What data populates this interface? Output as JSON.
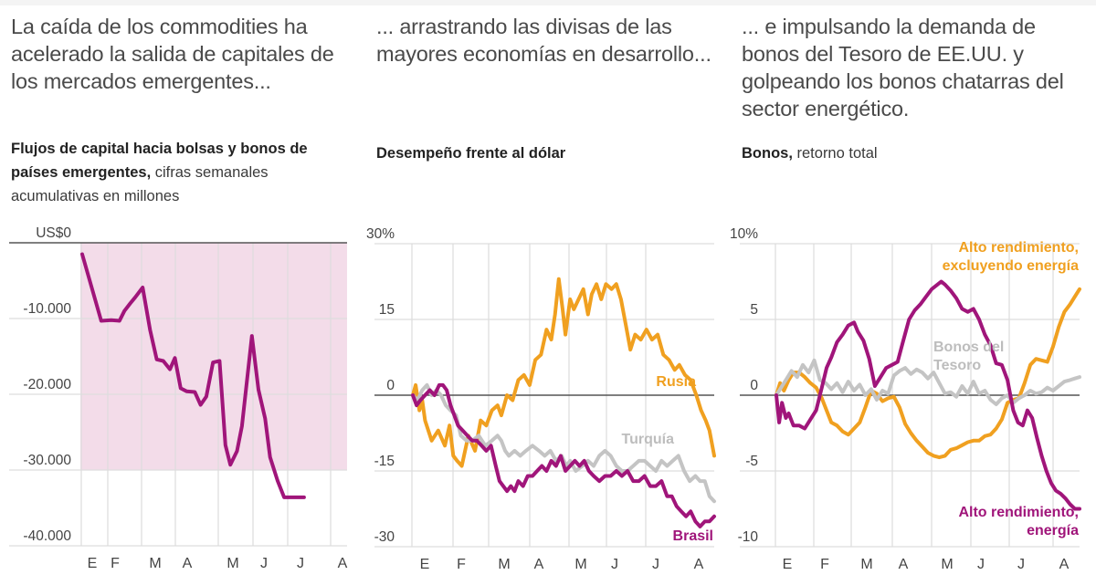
{
  "panels": [
    {
      "headline": "La caída de los commodities ha acelerado la salida de capitales de los mercados emergentes...",
      "subtitle_bold": "Flujos de capital hacia bolsas y bonos de países emergentes,",
      "subtitle_rest": " cifras semanales acumulativas en millones"
    },
    {
      "headline": "... arrastrando las divisas de las mayores economías en desarrollo...",
      "subtitle_bold": "Desempeño frente al dólar",
      "subtitle_rest": ""
    },
    {
      "headline": "... e impulsando la demanda de bonos del Tesoro de EE.UU. y golpeando los bonos chatarras del sector energético.",
      "subtitle_bold": "Bonos,",
      "subtitle_rest": " retorno total"
    }
  ],
  "colors": {
    "magenta": "#a0157a",
    "orange": "#f0a020",
    "gray": "#c4c4c4",
    "fill": "#f3dce9",
    "grid": "#dddddd",
    "zero": "#555555"
  },
  "chart_data": [
    {
      "type": "area",
      "title": "Flujos de capital hacia bolsas y bonos de países emergentes, cifras semanales acumulativas en millones",
      "xlabel": "",
      "ylabel": "",
      "ylim": [
        -40000,
        0
      ],
      "yticks": [
        0,
        -10000,
        -20000,
        -30000,
        -40000
      ],
      "ytick_labels": [
        "US$0",
        "-10.000",
        "-20.000",
        "-30.000",
        "-40.000"
      ],
      "xtick_labels": [
        "E",
        "F",
        "M",
        "A",
        "M",
        "J",
        "J",
        "A"
      ],
      "x_domain": [
        0,
        32
      ],
      "xtick_positions": [
        1,
        3.5,
        6.8,
        10,
        14,
        17.3,
        20.5,
        24.5
      ],
      "series": [
        {
          "name": "Flujos de capital",
          "color": "#a0157a",
          "x": [
            0,
            2.3,
            3.5,
            4.5,
            5.1,
            5.8,
            6.4,
            7.3,
            8.2,
            9,
            9.8,
            10.6,
            11.2,
            11.9,
            12.6,
            13.6,
            14.3,
            15.0,
            15.8,
            16.6,
            17.3,
            17.9,
            18.7,
            19.3,
            20.5,
            21.3,
            22.1,
            22.7,
            23.6,
            24.4,
            25.3,
            26.1,
            26.8
          ],
          "values": [
            -1500,
            -10300,
            -10200,
            -10300,
            -9000,
            -8000,
            -7200,
            -5900,
            -11500,
            -15400,
            -15600,
            -16700,
            -15200,
            -19200,
            -19600,
            -19700,
            -21400,
            -20300,
            -15800,
            -15600,
            -26700,
            -29300,
            -27500,
            -24200,
            -12300,
            -19400,
            -23200,
            -28300,
            -31400,
            -33600,
            -33600,
            -33600,
            -33600
          ]
        }
      ]
    },
    {
      "type": "line",
      "title": "Desempeño frente al dólar",
      "xlabel": "",
      "ylabel": "",
      "ylim": [
        -30,
        30
      ],
      "yticks": [
        30,
        15,
        0,
        -15,
        -30
      ],
      "ytick_labels": [
        "30%",
        "15",
        "0",
        "-15",
        "-30"
      ],
      "xtick_labels": [
        "E",
        "F",
        "M",
        "A",
        "M",
        "J",
        "J",
        "A"
      ],
      "x_domain": [
        0,
        32
      ],
      "xtick_positions": [
        1,
        5.2,
        9.4,
        13.6,
        18.2,
        22.4,
        26.6,
        30.8
      ],
      "series": [
        {
          "name": "Rusia",
          "color": "#f0a020",
          "x": [
            0,
            0.3,
            0.7,
            1.0,
            1.3,
            2.0,
            2.7,
            3.4,
            3.9,
            4.3,
            4.7,
            5.2,
            5.9,
            6.6,
            7.2,
            7.8,
            8.4,
            9.0,
            9.4,
            10,
            10.6,
            11.2,
            11.8,
            12.4,
            13,
            13.6,
            14.2,
            14.7,
            15.1,
            15.5,
            15.9,
            16.2,
            16.7,
            17.1,
            17.6,
            18.1,
            18.6,
            19.0,
            19.5,
            20.0,
            20.5,
            21.1,
            21.6,
            22.1,
            22.6,
            23.1,
            23.6,
            24.2,
            24.8,
            25.4,
            26.0,
            26.6,
            27.2,
            27.8,
            28.3,
            28.9,
            29.5,
            30.1,
            30.6,
            31.1,
            31.5,
            32
          ],
          "values": [
            0,
            2,
            -3,
            -1,
            -5,
            -9,
            -7,
            -10,
            -6,
            -12,
            -13,
            -14,
            -8,
            -11,
            -5,
            -6,
            -3,
            -2,
            -4,
            0,
            -1,
            3,
            4,
            2,
            7,
            8,
            13,
            11,
            16,
            23,
            17,
            12,
            19,
            17,
            19,
            21,
            16,
            20,
            22,
            19,
            22,
            21,
            22,
            19,
            14,
            9,
            12,
            11,
            13,
            11,
            12,
            8,
            7,
            5,
            6,
            4,
            3,
            0,
            -3,
            -5,
            -7,
            -12
          ]
        },
        {
          "name": "Turquía",
          "color": "#c4c4c4",
          "x": [
            0,
            0.5,
            1.0,
            1.5,
            2.0,
            2.5,
            3.0,
            3.5,
            4.0,
            4.6,
            5.1,
            5.7,
            6.3,
            7.0,
            7.7,
            8.4,
            9.0,
            9.4,
            9.8,
            10.2,
            10.8,
            11.4,
            12.0,
            12.7,
            13.4,
            14.0,
            14.6,
            15.2,
            15.8,
            16.3,
            16.7,
            17.3,
            18.0,
            18.6,
            19.2,
            19.8,
            20.4,
            21.0,
            21.6,
            22.2,
            22.8,
            23.4,
            24.0,
            24.6,
            25.2,
            25.8,
            26.4,
            27.0,
            27.6,
            28.2,
            28.8,
            29.4,
            30.0,
            30.5,
            31.0,
            31.5,
            32
          ],
          "values": [
            0,
            -1,
            1,
            2,
            0,
            1,
            0,
            -2,
            -3,
            -4,
            -8,
            -9,
            -9,
            -8,
            -10,
            -9,
            -8,
            -9,
            -11,
            -12,
            -11,
            -12,
            -11,
            -10,
            -11,
            -12,
            -11,
            -13,
            -12,
            -14,
            -13,
            -15,
            -14,
            -13,
            -14,
            -12,
            -11,
            -12,
            -14,
            -15,
            -15,
            -14,
            -13,
            -13,
            -14,
            -15,
            -13,
            -14,
            -13,
            -12,
            -15,
            -17,
            -16,
            -17,
            -17,
            -20,
            -21
          ]
        },
        {
          "name": "Brasil",
          "color": "#a0157a",
          "x": [
            0,
            0.4,
            0.8,
            1.3,
            1.8,
            2.3,
            2.8,
            3.2,
            3.6,
            4.0,
            4.4,
            4.8,
            5.3,
            5.8,
            6.3,
            6.8,
            7.3,
            7.8,
            8.3,
            8.8,
            9.2,
            9.6,
            10.0,
            10.4,
            10.8,
            11.2,
            11.7,
            12.2,
            12.7,
            13.2,
            13.7,
            14.2,
            14.7,
            15.2,
            15.7,
            16.2,
            16.7,
            17.2,
            17.7,
            18.2,
            18.7,
            19.2,
            19.8,
            20.4,
            21.0,
            21.6,
            22.2,
            22.8,
            23.4,
            24.0,
            24.6,
            25.2,
            25.8,
            26.4,
            27.0,
            27.5,
            28.0,
            28.5,
            29.0,
            29.5,
            30.0,
            30.5,
            31.0,
            31.5,
            32
          ],
          "values": [
            0,
            -2,
            -1,
            0,
            1,
            0,
            2,
            2,
            1,
            -2,
            -4,
            -6,
            -7,
            -8,
            -9,
            -9,
            -10,
            -11,
            -10,
            -14,
            -17,
            -18,
            -19,
            -18,
            -19,
            -17,
            -18,
            -16,
            -16,
            -15,
            -14,
            -15,
            -13,
            -14,
            -12,
            -15,
            -14,
            -13,
            -14,
            -13,
            -15,
            -16,
            -17,
            -16,
            -16,
            -15,
            -16,
            -15,
            -17,
            -17,
            -16,
            -18,
            -18,
            -17,
            -20,
            -20,
            -22,
            -23,
            -24,
            -23,
            -25,
            -26,
            -25,
            -25,
            -24
          ]
        }
      ],
      "annotations": [
        "Rusia",
        "Turquía",
        "Brasil"
      ]
    },
    {
      "type": "line",
      "title": "Bonos, retorno total",
      "xlabel": "",
      "ylabel": "",
      "ylim": [
        -10,
        10
      ],
      "yticks": [
        10,
        5,
        0,
        -5,
        -10
      ],
      "ytick_labels": [
        "10%",
        "5",
        "0",
        "-5",
        "-10"
      ],
      "xtick_labels": [
        "E",
        "F",
        "M",
        "A",
        "M",
        "J",
        "J",
        "A"
      ],
      "x_domain": [
        0,
        32
      ],
      "xtick_positions": [
        1,
        4.8,
        8.6,
        12.6,
        16.7,
        20.5,
        24.7,
        28.8
      ],
      "series": [
        {
          "name": "Alto rendimiento, excluyendo energía",
          "color": "#f0a020",
          "x": [
            0,
            0.4,
            0.8,
            1.3,
            1.8,
            2.4,
            3.0,
            3.6,
            4.2,
            4.8,
            5.3,
            5.8,
            6.4,
            7.0,
            7.6,
            8.2,
            8.8,
            9.4,
            10.0,
            10.6,
            11.2,
            11.8,
            12.4,
            13.0,
            13.6,
            14.2,
            14.8,
            15.4,
            16.0,
            16.6,
            17.2,
            17.8,
            18.4,
            19.0,
            19.6,
            20.2,
            20.8,
            21.4,
            22.0,
            22.6,
            23.2,
            23.8,
            24.4,
            25.0,
            25.6,
            26.2,
            26.8,
            27.4,
            28.0,
            28.6,
            29.2,
            29.8,
            30.4,
            31.0,
            31.5,
            32
          ],
          "values": [
            0,
            0.8,
            0.3,
            1.0,
            1.5,
            1.5,
            1.2,
            0.8,
            0.5,
            -0.2,
            -1.0,
            -1.8,
            -2.0,
            -2.4,
            -2.6,
            -2.2,
            -1.8,
            -0.8,
            0.3,
            0.1,
            -0.4,
            -0.2,
            -0.1,
            -0.8,
            -1.9,
            -2.5,
            -3.0,
            -3.4,
            -3.8,
            -4.0,
            -4.1,
            -4.0,
            -3.6,
            -3.5,
            -3.3,
            -3.1,
            -3.0,
            -3.0,
            -2.7,
            -2.6,
            -2.2,
            -1.6,
            -0.5,
            -0.3,
            -0.2,
            0.8,
            2.0,
            2.4,
            2.3,
            2.2,
            3.2,
            4.5,
            5.5,
            6.0,
            6.5,
            7.0
          ]
        },
        {
          "name": "Bonos del Tesoro",
          "color": "#c4c4c4",
          "x": [
            0,
            0.5,
            1.0,
            1.6,
            2.2,
            2.8,
            3.4,
            4.0,
            4.6,
            5.2,
            5.8,
            6.4,
            7.0,
            7.6,
            8.2,
            8.8,
            9.4,
            10.0,
            10.6,
            11.2,
            11.8,
            12.4,
            13.0,
            13.6,
            14.2,
            14.8,
            15.4,
            16.0,
            16.6,
            17.2,
            17.8,
            18.4,
            19.0,
            19.6,
            20.2,
            20.8,
            21.4,
            22.0,
            22.6,
            23.2,
            23.8,
            24.4,
            25.0,
            25.6,
            26.2,
            26.8,
            27.4,
            28.0,
            28.6,
            29.2,
            29.8,
            30.4,
            31.0,
            31.5,
            32
          ],
          "values": [
            0,
            0.5,
            1.0,
            1.6,
            1.2,
            2.0,
            1.5,
            2.3,
            1.0,
            0.8,
            0.4,
            0.8,
            0.2,
            0.9,
            0.3,
            0.7,
            0,
            0.4,
            -0.3,
            0.3,
            0.1,
            1.3,
            1.6,
            1.8,
            1.4,
            1.7,
            1.5,
            1.1,
            1.5,
            0.8,
            0.1,
            0.2,
            -0.1,
            0.6,
            0.1,
            0.9,
            0.1,
            0.3,
            -0.3,
            -0.6,
            -0.2,
            0,
            -0.5,
            -0.2,
            0,
            0.3,
            0.1,
            0.2,
            0.5,
            0.3,
            0.6,
            0.9,
            1.0,
            1.1,
            1.2
          ]
        },
        {
          "name": "Alto rendimiento, energía",
          "color": "#a0157a",
          "x": [
            0,
            0.3,
            0.6,
            1.0,
            1.3,
            1.8,
            2.4,
            3.0,
            3.6,
            4.2,
            4.8,
            5.3,
            5.8,
            6.4,
            7.0,
            7.6,
            8.2,
            8.6,
            9.2,
            9.8,
            10.4,
            11.0,
            11.6,
            12.2,
            12.8,
            13.4,
            14.0,
            14.6,
            15.2,
            15.8,
            16.4,
            17.0,
            17.4,
            17.8,
            18.4,
            19.0,
            19.6,
            20.2,
            20.8,
            21.4,
            22.0,
            22.6,
            23.2,
            23.8,
            24.4,
            25.0,
            25.5,
            26.0,
            26.5,
            27.0,
            27.5,
            28.0,
            28.5,
            29.0,
            29.5,
            30.0,
            30.5,
            31.0,
            31.5,
            32
          ],
          "values": [
            0,
            -1.8,
            -0.5,
            -1.5,
            -1.2,
            -2.0,
            -2.0,
            -2.2,
            -1.6,
            -1.0,
            0.5,
            1.8,
            2.5,
            3.5,
            4.0,
            4.6,
            4.8,
            4.2,
            3.6,
            2.4,
            0.6,
            1.2,
            1.8,
            2.0,
            2.2,
            3.6,
            5.0,
            5.6,
            6.0,
            6.5,
            7.0,
            7.3,
            7.5,
            7.3,
            6.9,
            6.4,
            5.7,
            5.5,
            5.7,
            5.0,
            4.0,
            3.3,
            2.1,
            2.0,
            1.0,
            -1.0,
            -1.8,
            -2.0,
            -1.0,
            -1.5,
            -2.8,
            -4.0,
            -5.0,
            -5.8,
            -6.3,
            -6.5,
            -6.8,
            -7.2,
            -7.5,
            -7.5
          ]
        }
      ],
      "annotations": [
        "Alto rendimiento, excluyendo energía",
        "Bonos del Tesoro",
        "Alto rendimiento, energía"
      ]
    }
  ],
  "labels": {
    "rusia": "Rusia",
    "turquia": "Turquía",
    "brasil": "Brasil",
    "hy_ex_1": "Alto rendimiento,",
    "hy_ex_2": "excluyendo energía",
    "tesoro_1": "Bonos del",
    "tesoro_2": "Tesoro",
    "hy_en_1": "Alto rendimiento,",
    "hy_en_2": "energía"
  }
}
